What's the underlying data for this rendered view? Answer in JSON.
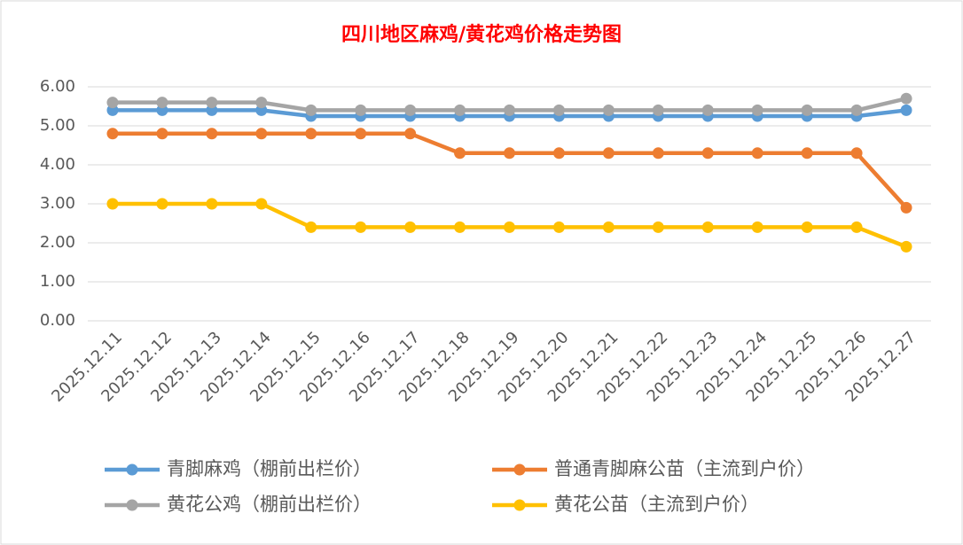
{
  "chart_data": {
    "type": "line",
    "title": "四川地区麻鸡/黄花鸡价格走势图",
    "categories": [
      "2025.12.11",
      "2025.12.12",
      "2025.12.13",
      "2025.12.14",
      "2025.12.15",
      "2025.12.16",
      "2025.12.17",
      "2025.12.18",
      "2025.12.19",
      "2025.12.20",
      "2025.12.21",
      "2025.12.22",
      "2025.12.23",
      "2025.12.24",
      "2025.12.25",
      "2025.12.26",
      "2025.12.27"
    ],
    "series": [
      {
        "name": "青脚麻鸡（棚前出栏价）",
        "color": "#5b9bd5",
        "values": [
          5.4,
          5.4,
          5.4,
          5.4,
          5.25,
          5.25,
          5.25,
          5.25,
          5.25,
          5.25,
          5.25,
          5.25,
          5.25,
          5.25,
          5.25,
          5.25,
          5.4
        ]
      },
      {
        "name": "普通青脚麻公苗（主流到户价）",
        "color": "#ed7d31",
        "values": [
          4.8,
          4.8,
          4.8,
          4.8,
          4.8,
          4.8,
          4.8,
          4.3,
          4.3,
          4.3,
          4.3,
          4.3,
          4.3,
          4.3,
          4.3,
          4.3,
          2.9
        ]
      },
      {
        "name": "黄花公鸡（棚前出栏价）",
        "color": "#a5a5a5",
        "values": [
          5.6,
          5.6,
          5.6,
          5.6,
          5.4,
          5.4,
          5.4,
          5.4,
          5.4,
          5.4,
          5.4,
          5.4,
          5.4,
          5.4,
          5.4,
          5.4,
          5.7
        ]
      },
      {
        "name": "黄花公苗（主流到户价）",
        "color": "#ffc000",
        "values": [
          3.0,
          3.0,
          3.0,
          3.0,
          2.4,
          2.4,
          2.4,
          2.4,
          2.4,
          2.4,
          2.4,
          2.4,
          2.4,
          2.4,
          2.4,
          2.4,
          1.9
        ]
      }
    ],
    "ylim": [
      0,
      6
    ],
    "yticks": [
      {
        "value": 0,
        "label": "0.00"
      },
      {
        "value": 1,
        "label": "1.00"
      },
      {
        "value": 2,
        "label": "2.00"
      },
      {
        "value": 3,
        "label": "3.00"
      },
      {
        "value": 4,
        "label": "4.00"
      },
      {
        "value": 5,
        "label": "5.00"
      },
      {
        "value": 6,
        "label": "6.00"
      }
    ],
    "grid": true
  }
}
